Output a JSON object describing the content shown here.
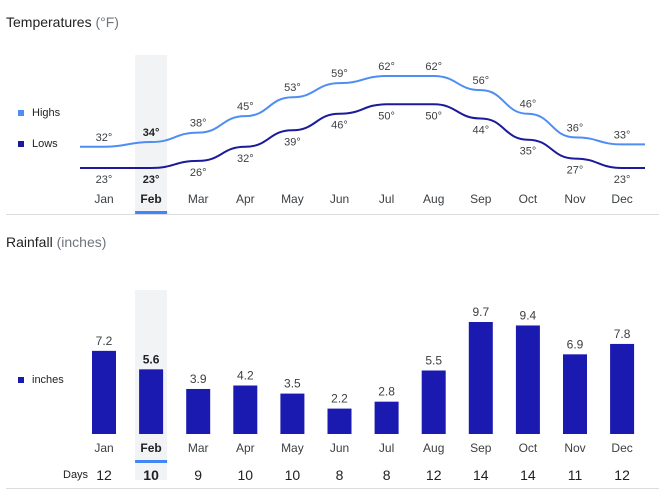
{
  "selected_month_index": 1,
  "chart_data": [
    {
      "type": "line",
      "title": "Temperatures",
      "unit": "(°F)",
      "categories": [
        "Jan",
        "Feb",
        "Mar",
        "Apr",
        "May",
        "Jun",
        "Jul",
        "Aug",
        "Sep",
        "Oct",
        "Nov",
        "Dec"
      ],
      "series": [
        {
          "name": "Highs",
          "color": "#4e8ef4",
          "values": [
            32,
            34,
            38,
            45,
            53,
            59,
            62,
            62,
            56,
            46,
            36,
            33
          ]
        },
        {
          "name": "Lows",
          "color": "#1a1a9a",
          "values": [
            23,
            23,
            26,
            32,
            39,
            46,
            50,
            50,
            44,
            35,
            27,
            23
          ]
        }
      ],
      "ylim": [
        23,
        62
      ],
      "value_suffix": "°"
    },
    {
      "type": "bar",
      "title": "Rainfall",
      "unit": "(inches)",
      "categories": [
        "Jan",
        "Feb",
        "Mar",
        "Apr",
        "May",
        "Jun",
        "Jul",
        "Aug",
        "Sep",
        "Oct",
        "Nov",
        "Dec"
      ],
      "series": [
        {
          "name": "inches",
          "color": "#1a1ab0",
          "values": [
            7.2,
            5.6,
            3.9,
            4.2,
            3.5,
            2.2,
            2.8,
            5.5,
            9.7,
            9.4,
            6.9,
            7.8
          ]
        }
      ],
      "ylim": [
        0,
        9.7
      ],
      "days_label": "Days",
      "days": [
        12,
        10,
        9,
        10,
        10,
        8,
        8,
        12,
        14,
        14,
        11,
        12
      ]
    }
  ]
}
